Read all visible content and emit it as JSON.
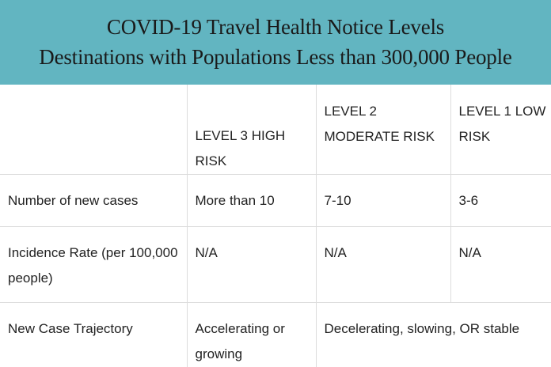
{
  "header": {
    "title_line1": "COVID-19 Travel Health Notice Levels",
    "title_line2": "Destinations with Populations Less than 300,000 People"
  },
  "table": {
    "columns": [
      "",
      "LEVEL 3 HIGH RISK",
      "LEVEL 2 MODERATE RISK",
      "LEVEL 1 LOW RISK"
    ],
    "rows": [
      {
        "label": "Number of new cases",
        "level3": "More than 10",
        "level2": "7-10",
        "level1": "3-6"
      },
      {
        "label": "Incidence Rate (per 100,000 people)",
        "level3": "N/A",
        "level2": "N/A",
        "level1": "N/A"
      },
      {
        "label": "New Case Trajectory",
        "level3": "Accelerating or growing",
        "level2_level1": "Decelerating, slowing, OR stable"
      }
    ]
  },
  "colors": {
    "banner_bg": "#62b5c1",
    "grid_line": "#dcdcdc"
  }
}
